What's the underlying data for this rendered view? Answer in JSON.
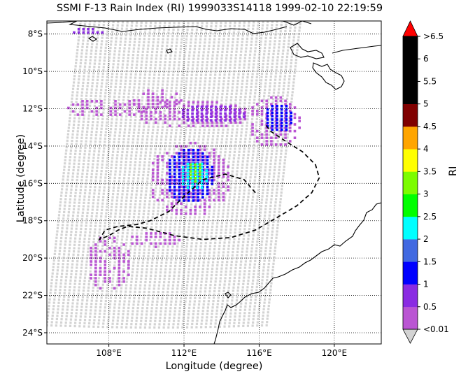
{
  "title": "SSMI F-13 Rain Index (RI) 1999033S14118 1999-02-10 22:19:59",
  "xlabel": "Longitude (degree)",
  "ylabel": "Latitude (degree)",
  "colorbar": {
    "label": "RI",
    "tick_labels": [
      "<0.01",
      "0.5",
      "1",
      "1.5",
      "2",
      "2.5",
      "3",
      "3.5",
      "4",
      "4.5",
      "5",
      "5.5",
      "6",
      ">6.5"
    ],
    "colors": [
      "#ba55d3",
      "#8a2be2",
      "#0000ff",
      "#4169e1",
      "#00ffff",
      "#00ff00",
      "#7cfc00",
      "#ffff00",
      "#ffa500",
      "#800000",
      "#000000",
      "#000000",
      "#000000"
    ],
    "over_color": "#ff0000",
    "under_color": "#d3d3d3"
  },
  "chart_data": {
    "type": "heatmap",
    "title": "SSMI F-13 Rain Index (RI) 1999033S14118 1999-02-10 22:19:59",
    "xlabel": "Longitude (degree)",
    "ylabel": "Latitude (degree)",
    "xlim": [
      104.7,
      122.5
    ],
    "ylim": [
      -24.6,
      -7.3
    ],
    "x_ticks": [
      108,
      112,
      116,
      120
    ],
    "x_tick_labels": [
      "108°E",
      "112°E",
      "116°E",
      "120°E"
    ],
    "y_ticks": [
      -8,
      -10,
      -12,
      -14,
      -16,
      -18,
      -20,
      -22,
      -24
    ],
    "y_tick_labels": [
      "8°S",
      "10°S",
      "12°S",
      "14°S",
      "16°S",
      "18°S",
      "20°S",
      "22°S",
      "24°S"
    ],
    "grid": true,
    "swath_corners": [
      [
        106.5,
        -7.3
      ],
      [
        118.2,
        -7.3
      ],
      [
        116.4,
        -23.6
      ],
      [
        104.7,
        -23.6
      ]
    ],
    "rain_clusters": [
      {
        "lon": 106.8,
        "lat": -7.9,
        "rx": 0.9,
        "ry": 0.2,
        "level": 1
      },
      {
        "lon": 107.8,
        "lat": -12.0,
        "rx": 2.2,
        "ry": 0.5,
        "level": 0
      },
      {
        "lon": 110.5,
        "lat": -11.5,
        "rx": 1.4,
        "ry": 0.6,
        "level": 0
      },
      {
        "lon": 112.5,
        "lat": -12.3,
        "rx": 3.0,
        "ry": 0.8,
        "level": 0
      },
      {
        "lon": 113.5,
        "lat": -12.3,
        "rx": 1.8,
        "ry": 0.5,
        "level": 1
      },
      {
        "lon": 116.8,
        "lat": -12.7,
        "rx": 1.4,
        "ry": 1.4,
        "level": 0
      },
      {
        "lon": 117.0,
        "lat": -12.5,
        "rx": 0.8,
        "ry": 0.8,
        "level": 2
      },
      {
        "lon": 112.3,
        "lat": -15.8,
        "rx": 2.2,
        "ry": 2.0,
        "level": 0
      },
      {
        "lon": 112.3,
        "lat": -15.6,
        "rx": 1.3,
        "ry": 1.5,
        "level": 2
      },
      {
        "lon": 112.5,
        "lat": -15.6,
        "rx": 0.8,
        "ry": 0.8,
        "level": 4
      },
      {
        "lon": 112.6,
        "lat": -15.4,
        "rx": 0.5,
        "ry": 0.5,
        "level": 6
      },
      {
        "lon": 108.0,
        "lat": -20.3,
        "rx": 1.2,
        "ry": 1.5,
        "level": 0
      },
      {
        "lon": 110.5,
        "lat": -19.0,
        "rx": 1.5,
        "ry": 0.4,
        "level": 0
      }
    ],
    "track": [
      [
        115.8,
        -16.5
      ],
      [
        115.2,
        -15.8
      ],
      [
        114.2,
        -15.5
      ],
      [
        113.0,
        -15.8
      ],
      [
        112.0,
        -16.7
      ],
      [
        111.2,
        -17.5
      ],
      [
        110.2,
        -18.0
      ],
      [
        109.5,
        -18.2
      ],
      [
        108.5,
        -18.3
      ],
      [
        107.8,
        -18.5
      ],
      [
        107.5,
        -19.0
      ],
      [
        108.0,
        -18.8
      ],
      [
        108.5,
        -18.5
      ],
      [
        109.0,
        -18.3
      ],
      [
        110.0,
        -18.4
      ],
      [
        111.5,
        -18.8
      ],
      [
        113.0,
        -19.0
      ],
      [
        114.5,
        -18.9
      ],
      [
        115.8,
        -18.5
      ],
      [
        117.0,
        -17.8
      ],
      [
        118.0,
        -17.2
      ],
      [
        118.8,
        -16.5
      ],
      [
        119.2,
        -15.7
      ],
      [
        119.0,
        -15.0
      ],
      [
        118.3,
        -14.3
      ],
      [
        117.5,
        -13.8
      ],
      [
        116.6,
        -13.2
      ],
      [
        116.3,
        -12.8
      ]
    ]
  }
}
